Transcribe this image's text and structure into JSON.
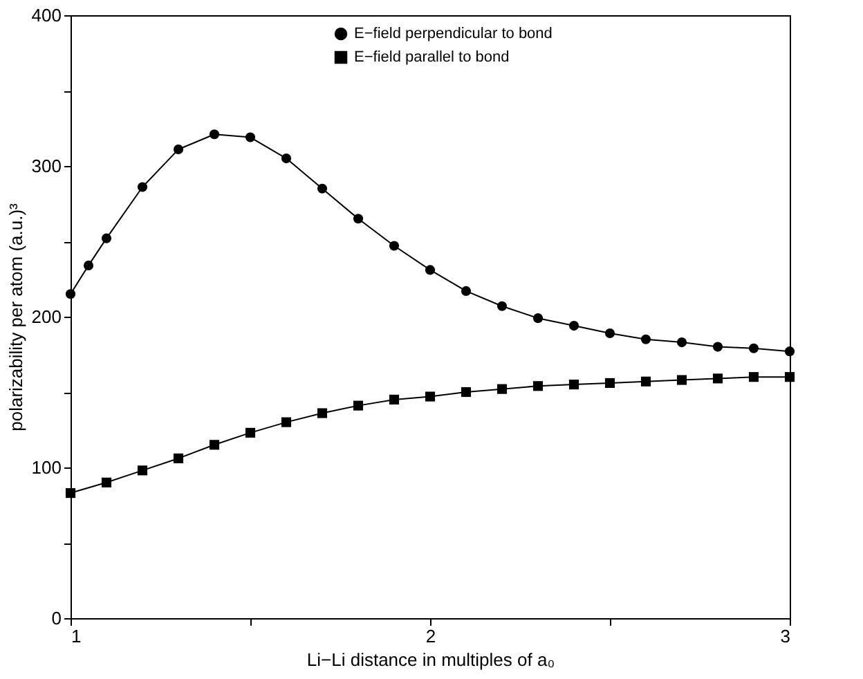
{
  "chart_data": {
    "type": "line",
    "xlabel": "Li−Li distance in multiples of a₀",
    "ylabel": "polarizability per atom (a.u.)³",
    "xlim": [
      1,
      3
    ],
    "xticks": [
      1,
      {
        "value": 1.5,
        "label": null
      },
      2,
      {
        "value": 2.5,
        "label": null
      },
      3
    ],
    "ylim": [
      0,
      400
    ],
    "yticks": [
      0,
      {
        "value": 50,
        "label": null
      },
      100,
      {
        "value": 150,
        "label": null
      },
      200,
      {
        "value": 250,
        "label": null
      },
      300,
      {
        "value": 350,
        "label": null
      },
      400
    ],
    "grid": false,
    "legend": "top",
    "line_style": "solid",
    "series": [
      {
        "name": "E−field perpendicular to bond",
        "color": "#000000",
        "marker": "circle",
        "x": [
          1.0,
          1.05,
          1.1,
          1.2,
          1.3,
          1.4,
          1.5,
          1.6,
          1.7,
          1.8,
          1.9,
          2.0,
          2.1,
          2.2,
          2.3,
          2.4,
          2.5,
          2.6,
          2.7,
          2.8,
          2.9,
          3.0
        ],
        "values": [
          215,
          234,
          252,
          286,
          311,
          321,
          319,
          305,
          285,
          265,
          247,
          231,
          217,
          207,
          199,
          194,
          189,
          185,
          183,
          180,
          179,
          177
        ]
      },
      {
        "name": "E−field parallel to bond",
        "color": "#000000",
        "marker": "square",
        "x": [
          1.0,
          1.1,
          1.2,
          1.3,
          1.4,
          1.5,
          1.6,
          1.7,
          1.8,
          1.9,
          2.0,
          2.1,
          2.2,
          2.3,
          2.4,
          2.5,
          2.6,
          2.7,
          2.8,
          2.9,
          3.0
        ],
        "values": [
          83,
          90,
          98,
          106,
          115,
          123,
          130,
          136,
          141,
          145,
          147,
          150,
          152,
          154,
          155,
          156,
          157,
          158,
          159,
          160,
          160
        ]
      }
    ]
  }
}
